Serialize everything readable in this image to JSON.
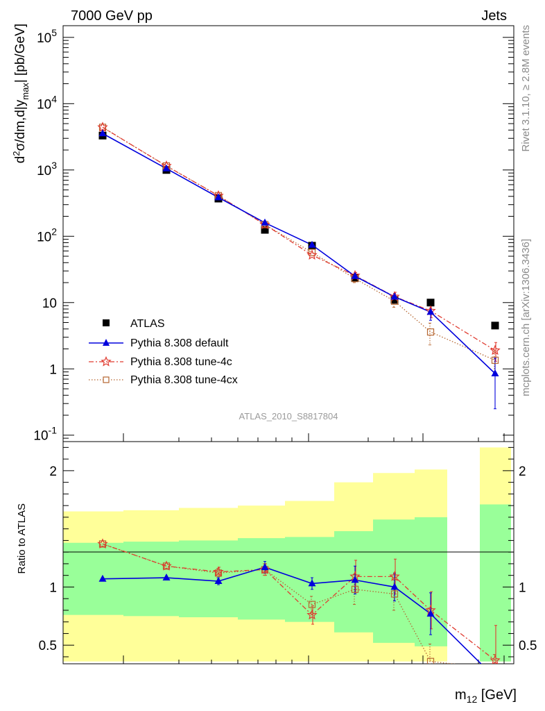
{
  "header": {
    "left": "7000 GeV pp",
    "right": "Jets",
    "side_top": "Rivet 3.1.10, ≥ 2.8M events",
    "side_bottom": "mcplots.cern.ch [arXiv:1306.3436]",
    "watermark": "ATLAS_2010_S8817804"
  },
  "axes": {
    "ylabel_main": "d²σ/dm,d|y_max| [pb/GeV]",
    "ylabel_ratio": "Ratio to ATLAS",
    "xlabel": "m12 [GeV]"
  },
  "colors": {
    "atlas": "#000000",
    "default": "#0000dd",
    "tune4c": "#e03a2f",
    "tune4cx": "#b5652f",
    "band_outer": "#ffff99",
    "band_inner": "#99ff99"
  },
  "chart_data": [
    {
      "type": "line",
      "panel": "main",
      "yscale": "log",
      "ylim": [
        0.08,
        150000
      ],
      "ytick_labels": [
        "10^5",
        "10^4",
        "10^3",
        "10^2",
        "10",
        "1",
        "10^-1"
      ],
      "x": [
        1,
        2,
        3,
        4,
        5,
        6,
        7,
        8,
        9
      ],
      "series": [
        {
          "name": "ATLAS",
          "style": "square",
          "values": [
            3300,
            1000,
            370,
            125,
            72,
            23.5,
            11,
            10,
            4.5
          ]
        },
        {
          "name": "Pythia 8.308 default",
          "style": "triangle-solid",
          "values": [
            3550,
            1050,
            385,
            160,
            74,
            25,
            12.2,
            7.2,
            0.85
          ],
          "err": [
            0,
            0,
            0,
            0,
            0,
            3,
            1.5,
            1.8,
            0.6
          ]
        },
        {
          "name": "Pythia 8.308 tune-4c",
          "style": "star-dashdot",
          "values": [
            4400,
            1150,
            410,
            150,
            52,
            25.5,
            12.3,
            7.5,
            1.9
          ],
          "err": [
            0,
            0,
            0,
            0,
            0,
            3,
            2,
            1.6,
            0.6
          ]
        },
        {
          "name": "Pythia 8.308 tune-4cx",
          "style": "opensquare-dotted",
          "values": [
            4400,
            1150,
            410,
            150,
            57,
            23,
            10.5,
            3.6,
            1.35
          ],
          "err": [
            0,
            0,
            0,
            0,
            0,
            3,
            2,
            1.3,
            0.5
          ]
        }
      ]
    },
    {
      "type": "line",
      "panel": "ratio",
      "ylim": [
        0.34,
        2.25
      ],
      "yticks": [
        0.5,
        1,
        2
      ],
      "ytick_labels": [
        "0.5",
        "1",
        "2"
      ],
      "x": [
        1,
        2,
        3,
        4,
        5,
        6,
        7,
        8,
        9
      ],
      "bands": {
        "outer": [
          [
            0.36,
            1.65
          ],
          [
            0.36,
            1.66
          ],
          [
            0.36,
            1.68
          ],
          [
            0.36,
            1.7
          ],
          [
            0.36,
            1.74
          ],
          [
            0.36,
            1.9
          ],
          [
            0.36,
            1.98
          ],
          [
            0.36,
            2.01
          ],
          [
            0.36,
            2.2
          ]
        ],
        "inner": [
          [
            0.76,
            1.38
          ],
          [
            0.75,
            1.39
          ],
          [
            0.74,
            1.4
          ],
          [
            0.72,
            1.42
          ],
          [
            0.7,
            1.43
          ],
          [
            0.61,
            1.48
          ],
          [
            0.52,
            1.58
          ],
          [
            0.49,
            1.6
          ],
          [
            0.36,
            1.71
          ]
        ]
      },
      "series": [
        {
          "name": "Pythia 8.308 default",
          "values": [
            1.07,
            1.08,
            1.05,
            1.17,
            1.03,
            1.06,
            1.0,
            0.77,
            0.22
          ],
          "err": [
            0,
            0,
            0.03,
            0.05,
            0.05,
            0.12,
            0.12,
            0.18,
            0.0
          ]
        },
        {
          "name": "Pythia 8.308 tune-4c",
          "values": [
            1.37,
            1.18,
            1.13,
            1.15,
            0.76,
            1.09,
            1.09,
            0.8,
            0.37
          ],
          "err": [
            0,
            0,
            0.04,
            0.05,
            0.08,
            0.14,
            0.15,
            0.16,
            0.3
          ]
        },
        {
          "name": "Pythia 8.308 tune-4cx",
          "values": [
            1.37,
            1.18,
            1.12,
            1.15,
            0.85,
            0.98,
            0.94,
            0.36,
            0.3
          ],
          "err": [
            0,
            0,
            0.04,
            0.05,
            0.07,
            0.13,
            0.14,
            0.15,
            0.12
          ]
        }
      ]
    }
  ]
}
